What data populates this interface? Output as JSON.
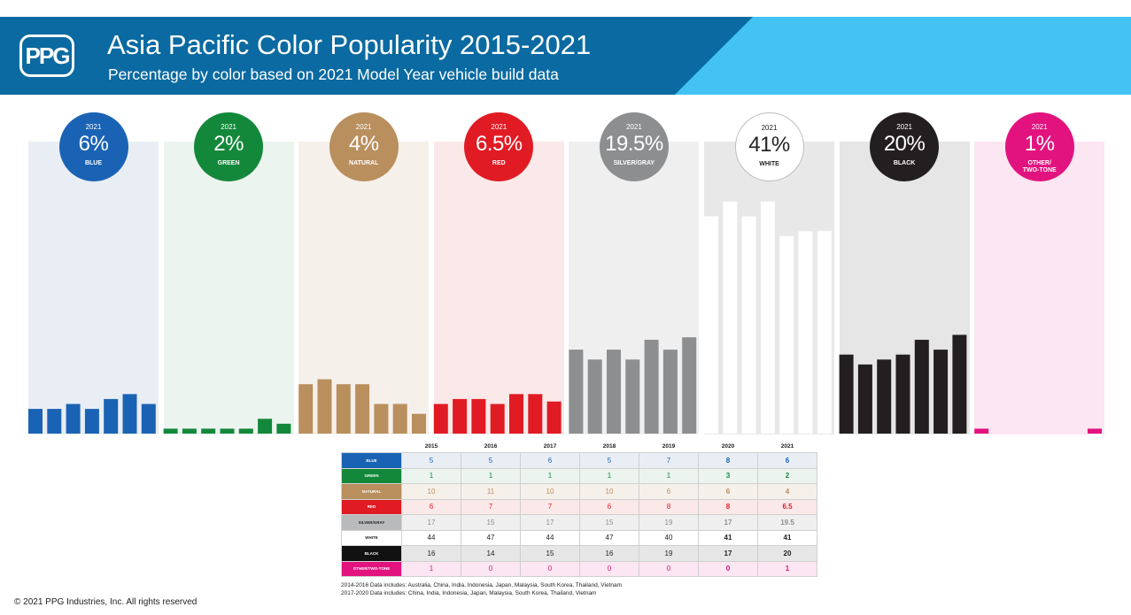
{
  "header": {
    "logo_text": "PPG",
    "title": "Asia Pacific Color Popularity 2015-2021",
    "subtitle": "Percentage by color based on 2021 Model Year vehicle build data"
  },
  "chart_data": {
    "type": "bar",
    "years": [
      "2015",
      "2016",
      "2017",
      "2018",
      "2019",
      "2020",
      "2021"
    ],
    "ylim": [
      0,
      55
    ],
    "series": [
      {
        "name": "BLUE",
        "badge_year": "2021",
        "badge_value": "6%",
        "values": [
          5,
          5,
          6,
          5,
          7,
          8,
          6
        ],
        "labels": [
          "5",
          "5",
          "6",
          "5",
          "7",
          "8",
          "6"
        ],
        "color": "#1a63b4",
        "panel_color": "#e9eef5",
        "text_color": "#1a63b4",
        "badge_text": "#ffffff"
      },
      {
        "name": "GREEN",
        "badge_year": "2021",
        "badge_value": "2%",
        "values": [
          1,
          1,
          1,
          1,
          1,
          3,
          2
        ],
        "labels": [
          "1",
          "1",
          "1",
          "1",
          "1",
          "3",
          "2"
        ],
        "color": "#13883b",
        "panel_color": "#ebf4ee",
        "text_color": "#13883b",
        "badge_text": "#ffffff"
      },
      {
        "name": "NATURAL",
        "badge_year": "2021",
        "badge_value": "4%",
        "values": [
          10,
          11,
          10,
          10,
          6,
          6,
          4
        ],
        "labels": [
          "10",
          "11",
          "10",
          "10",
          "6",
          "6",
          "4"
        ],
        "color": "#b98f5e",
        "panel_color": "#f6f0ea",
        "text_color": "#b98f5e",
        "badge_text": "#ffffff"
      },
      {
        "name": "RED",
        "badge_year": "2021",
        "badge_value": "6.5%",
        "values": [
          6,
          7,
          7,
          6,
          8,
          8,
          6.5
        ],
        "labels": [
          "6",
          "7",
          "7",
          "6",
          "8",
          "8",
          "6.5"
        ],
        "color": "#e01b24",
        "panel_color": "#fbe8e9",
        "text_color": "#e01b24",
        "badge_text": "#ffffff"
      },
      {
        "name": "SILVER/GRAY",
        "badge_year": "2021",
        "badge_value": "19.5%",
        "values": [
          17,
          15,
          17,
          15,
          19,
          17,
          19.5
        ],
        "labels": [
          "17",
          "15",
          "17",
          "15",
          "19",
          "17",
          "19.5"
        ],
        "color": "#8d8e90",
        "panel_color": "#efefef",
        "text_color": "#8d8e90",
        "badge_text": "#ffffff"
      },
      {
        "name": "WHITE",
        "badge_year": "2021",
        "badge_value": "41%",
        "values": [
          44,
          47,
          44,
          47,
          40,
          41,
          41
        ],
        "labels": [
          "44",
          "47",
          "44",
          "47",
          "40",
          "41",
          "41"
        ],
        "color": "#ffffff",
        "panel_color": "#e8e8e9",
        "text_color": "#222222",
        "badge_text": "#222222"
      },
      {
        "name": "BLACK",
        "badge_year": "2021",
        "badge_value": "20%",
        "values": [
          16,
          14,
          15,
          16,
          19,
          17,
          20
        ],
        "labels": [
          "16",
          "14",
          "15",
          "16",
          "19",
          "17",
          "20"
        ],
        "color": "#231f20",
        "panel_color": "#e6e6e6",
        "text_color": "#222222",
        "badge_text": "#ffffff"
      },
      {
        "name": "OTHER/ TWO-TONE",
        "badge_year": "2021",
        "badge_value": "1%",
        "values": [
          1,
          0,
          0,
          0,
          0,
          0,
          1
        ],
        "labels": [
          "1",
          "0",
          "0",
          "0",
          "0",
          "0",
          "1"
        ],
        "color": "#e2137e",
        "panel_color": "#fbe6f1",
        "text_color": "#e2137e",
        "badge_text": "#ffffff"
      }
    ],
    "table_row_names": [
      "BLUE",
      "GREEN",
      "NATURAL",
      "RED",
      "SILVER/GRAY",
      "WHITE",
      "BLACK",
      "OTHER/TWO-TONE"
    ],
    "table_label_colors": [
      "#1a63b4",
      "#13883b",
      "#b98f5e",
      "#e01b24",
      "#b9babc",
      "#ffffff",
      "#111111",
      "#e2137e"
    ],
    "table_label_text": [
      "#ffffff",
      "#ffffff",
      "#ffffff",
      "#ffffff",
      "#222222",
      "#222222",
      "#ffffff",
      "#ffffff"
    ]
  },
  "notes": {
    "line1": "2014-2016 Data includes: Australia, China, India, Indonesia,  Japan, Malaysia,  South Korea, Thailand, Vietnam",
    "line2": "2017-2020 Data includes: China, India, Indonesia,  Japan, Malaysia,  South Korea, Thailand, Vietnam"
  },
  "footer": {
    "copyright": "© 2021 PPG Industries, Inc. All rights reserved"
  }
}
